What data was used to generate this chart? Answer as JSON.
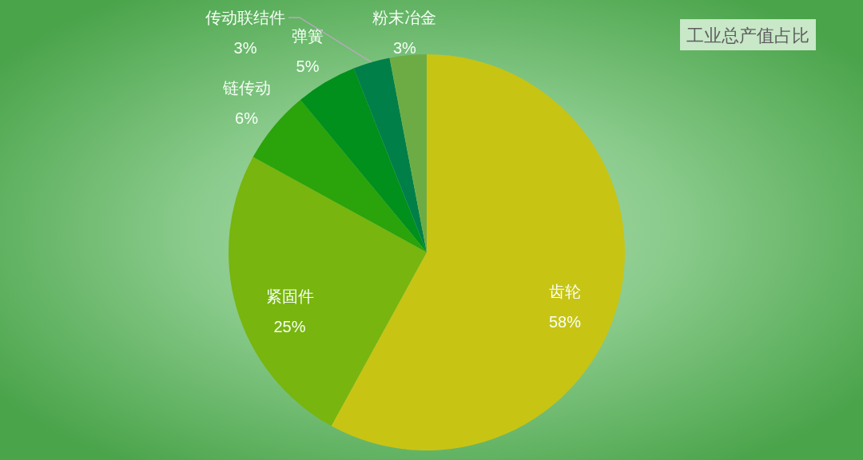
{
  "chart_data": {
    "type": "pie",
    "title": "工业总产值占比",
    "categories": [
      "齿轮",
      "紧固件",
      "链传动",
      "弹簧",
      "传动联结件",
      "粉末冶金"
    ],
    "values": [
      58,
      25,
      6,
      5,
      3,
      3
    ],
    "value_labels": [
      "58%",
      "25%",
      "6%",
      "5%",
      "3%",
      "3%"
    ],
    "colors": [
      "#c8c414",
      "#78b50e",
      "#2ba30a",
      "#01901b",
      "#007f48",
      "#6dac45"
    ]
  }
}
